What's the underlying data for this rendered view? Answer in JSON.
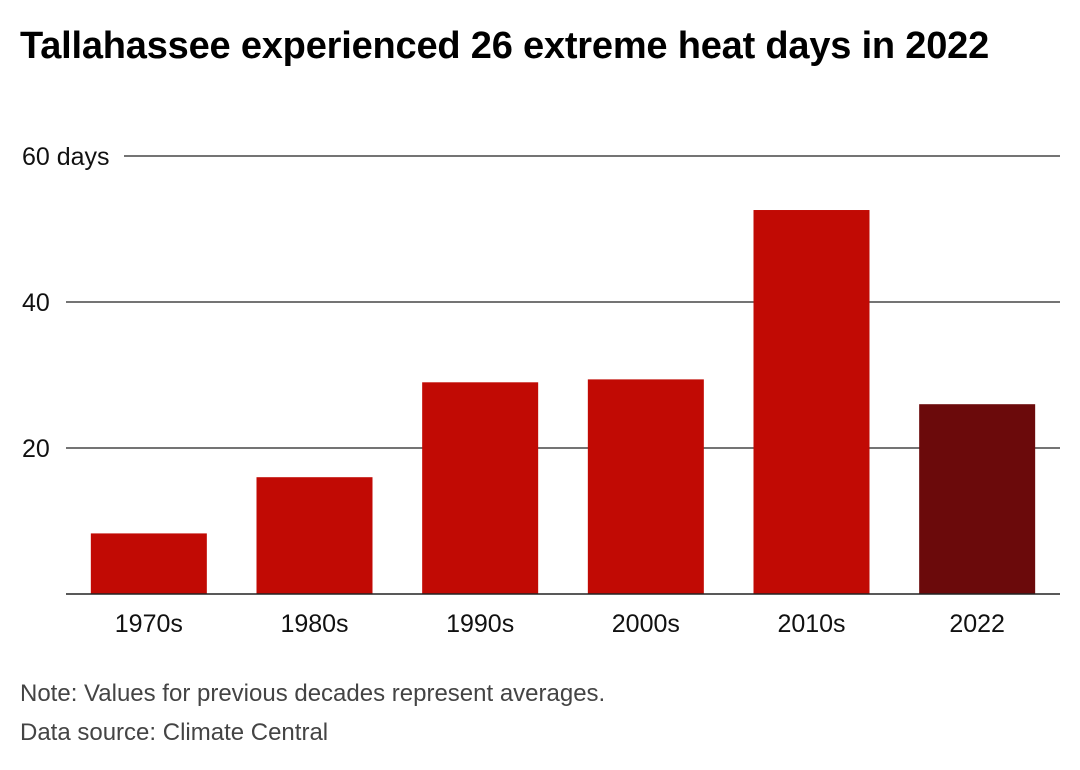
{
  "title": "Tallahassee experienced 26 extreme heat days in 2022",
  "footer": {
    "note": "Note: Values for previous decades represent averages.",
    "source": "Data source: Climate Central"
  },
  "chart_data": {
    "type": "bar",
    "title": "Tallahassee experienced 26 extreme heat days in 2022",
    "categories": [
      "1970s",
      "1980s",
      "1990s",
      "2000s",
      "2010s",
      "2022"
    ],
    "values": [
      8.3,
      16,
      29,
      29.4,
      52.6,
      26
    ],
    "ylim": [
      0,
      60
    ],
    "yticks": [
      20,
      40,
      60
    ],
    "ytick_labels": [
      "20",
      "40",
      "60 days"
    ],
    "grid": true,
    "colors": {
      "bar": "#c10a04",
      "highlight": "#6b0a0b",
      "grid": "#222222"
    },
    "highlight_index": 5
  }
}
